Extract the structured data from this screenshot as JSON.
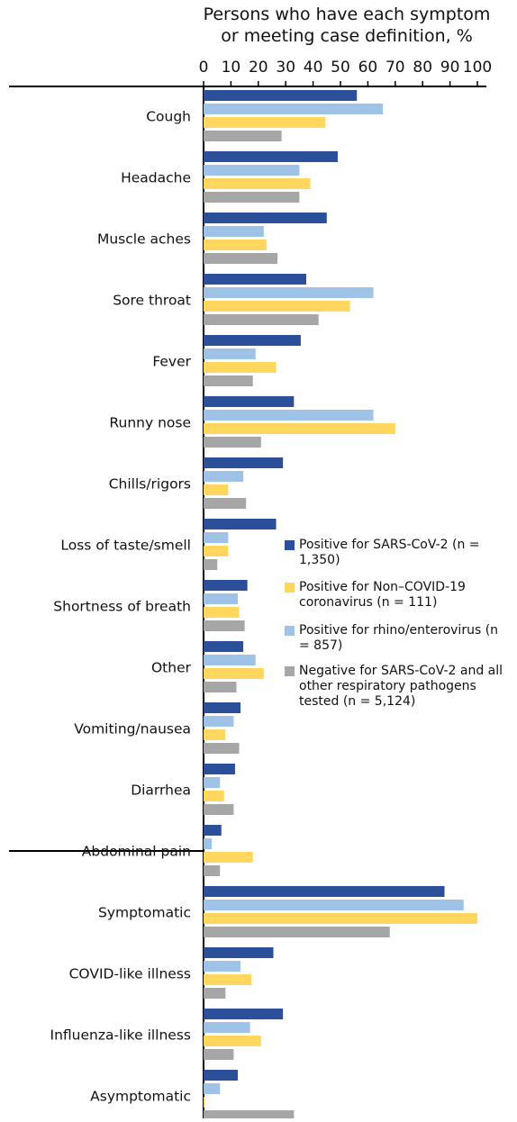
{
  "chart_data": {
    "type": "hbar",
    "title": "Persons who have each symptom or meeting case definition, %",
    "categories": [
      "Cough",
      "Headache",
      "Muscle aches",
      "Sore throat",
      "Fever",
      "Runny nose",
      "Chills/rigors",
      "Loss of taste/smell",
      "Shortness of breath",
      "Other",
      "Vomiting/nausea",
      "Diarrhea",
      "Abdominal pain",
      "Symptomatic",
      "COVID-like illness",
      "Influenza-like illness",
      "Asymptomatic"
    ],
    "series": [
      {
        "name": "Positive for SARS-CoV-2 (n = 1,350)",
        "color": "#2b4f98",
        "values": [
          56,
          49,
          45,
          37.5,
          35.5,
          33,
          29,
          26.5,
          16,
          14.5,
          13.5,
          11.5,
          6.5,
          88,
          25.5,
          29,
          12.5
        ]
      },
      {
        "name": "Positive for rhino/enterovirus (n = 857)",
        "color": "#9fc3e7",
        "values": [
          65.5,
          35,
          22,
          62,
          19,
          62,
          14.5,
          9,
          12.5,
          19,
          11,
          6,
          3,
          95,
          13.5,
          17,
          6
        ]
      },
      {
        "name": "Positive for Non–COVID-19 coronavirus (n = 111)",
        "color": "#ffd75e",
        "values": [
          44.5,
          39,
          23,
          53.5,
          26.5,
          70,
          9,
          9,
          13,
          22,
          8,
          7.5,
          18,
          100,
          17.5,
          21,
          0.5
        ]
      },
      {
        "name": "Negative for SARS-CoV-2 and all other respiratory pathogens tested (n = 5,124)",
        "color": "#a6a6a6",
        "values": [
          28.5,
          35,
          27,
          42,
          18,
          21,
          15.5,
          5,
          15,
          12,
          13,
          11,
          6,
          68,
          8,
          11,
          33
        ]
      }
    ],
    "legend_order": [
      0,
      2,
      1,
      3
    ],
    "xlim": [
      0,
      100
    ],
    "xticks": [
      0,
      10,
      20,
      30,
      40,
      50,
      60,
      70,
      80,
      90,
      100
    ]
  }
}
